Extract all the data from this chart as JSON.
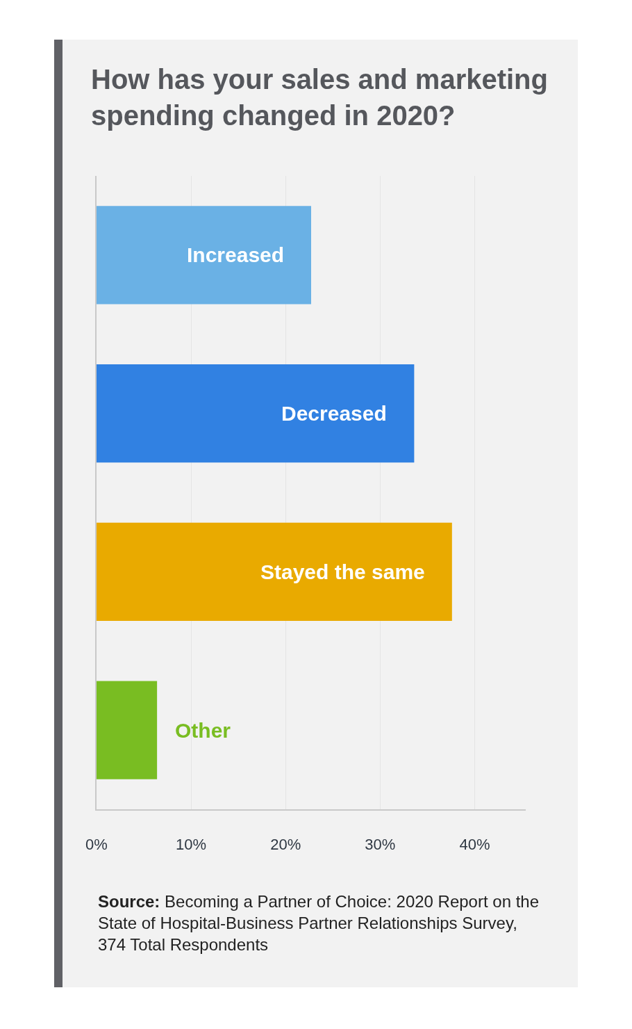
{
  "chart_data": {
    "type": "bar",
    "orientation": "horizontal",
    "title": "How has your sales and marketing spending changed in 2020?",
    "categories": [
      "Increased",
      "Decreased",
      "Stayed the same",
      "Other"
    ],
    "values": [
      22.7,
      33.6,
      37.6,
      6.4
    ],
    "colors": [
      "#6ab1e5",
      "#3181e2",
      "#e9aa00",
      "#79bd22"
    ],
    "xlim": [
      0,
      45.4
    ],
    "xticks": [
      {
        "value": 0,
        "label": "0%"
      },
      {
        "value": 10,
        "label": "10%"
      },
      {
        "value": 20,
        "label": "20%"
      },
      {
        "value": 30,
        "label": "30%"
      },
      {
        "value": 40,
        "label": "40%"
      }
    ],
    "grid": "x",
    "tick_labels": "x",
    "annotations": [
      "Source: Becoming a Partner of Choice: 2020 Report on the State of Hospital-Business Partner Relationships Survey, 374 Total Respondents"
    ]
  }
}
